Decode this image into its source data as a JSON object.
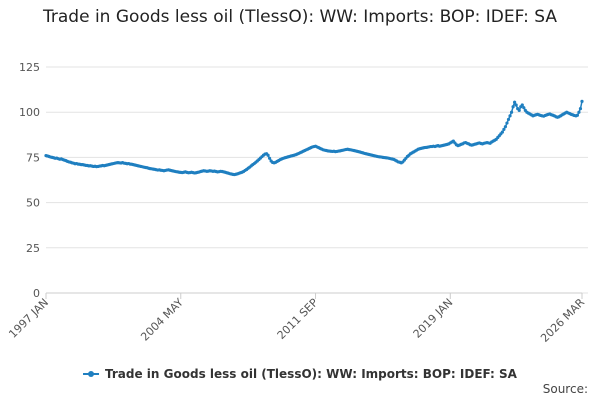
{
  "chart_data": {
    "type": "line",
    "title": "Trade in Goods less oil (TlessO): WW: Imports: BOP: IDEF: SA",
    "source": "Source:",
    "categories": [
      "1997 JAN",
      null,
      null,
      null,
      null,
      null,
      null,
      null,
      null,
      null,
      null,
      null,
      null,
      null,
      null,
      null,
      null,
      null,
      null,
      null,
      null,
      null,
      null,
      null,
      null,
      null,
      null,
      null,
      null,
      null,
      null,
      null,
      null,
      null,
      null,
      null,
      null,
      null,
      null,
      null,
      null,
      null,
      null,
      null,
      null,
      null,
      null,
      null,
      null,
      null,
      null,
      null,
      null,
      null,
      null,
      null,
      null,
      null,
      null,
      null,
      null,
      null,
      null,
      null,
      null,
      null,
      null,
      null,
      null,
      null,
      null,
      null,
      null,
      null,
      null,
      null,
      null,
      null,
      null,
      null,
      null,
      null,
      null,
      null,
      null,
      null,
      null,
      null,
      "2004 MAY",
      null,
      null,
      null,
      null,
      null,
      null,
      null,
      null,
      null,
      null,
      null,
      null,
      null,
      null,
      null,
      null,
      null,
      null,
      null,
      null,
      null,
      null,
      null,
      null,
      null,
      null,
      null,
      null,
      null,
      null,
      null,
      null,
      null,
      null,
      null,
      null,
      null,
      null,
      null,
      null,
      null,
      null,
      null,
      null,
      null,
      null,
      null,
      null,
      null,
      null,
      null,
      null,
      null,
      null,
      null,
      null,
      null,
      null,
      null,
      null,
      null,
      null,
      null,
      null,
      null,
      null,
      null,
      null,
      null,
      null,
      null,
      null,
      null,
      null,
      null,
      null,
      null,
      null,
      null,
      null,
      null,
      null,
      null,
      null,
      null,
      null,
      null,
      "2011 SEP",
      null,
      null,
      null,
      null,
      null,
      null,
      null,
      null,
      null,
      null,
      null,
      null,
      null,
      null,
      null,
      null,
      null,
      null,
      null,
      null,
      null,
      null,
      null,
      null,
      null,
      null,
      null,
      null,
      null,
      null,
      null,
      null,
      null,
      null,
      null,
      null,
      null,
      null,
      null,
      null,
      null,
      null,
      null,
      null,
      null,
      null,
      null,
      null,
      null,
      null,
      null,
      null,
      null,
      null,
      null,
      null,
      null,
      null,
      null,
      null,
      null,
      null,
      null,
      null,
      null,
      null,
      null,
      null,
      null,
      null,
      null,
      null,
      null,
      null,
      null,
      null,
      null,
      null,
      null,
      null,
      null,
      null,
      null,
      null,
      null,
      null,
      null,
      "2019 JAN",
      null,
      null,
      null,
      null,
      null,
      null,
      null,
      null,
      null,
      null,
      null,
      null,
      null,
      null,
      null,
      null,
      null,
      null,
      null,
      null,
      null,
      null,
      null,
      null,
      null,
      null,
      null,
      null,
      null,
      null,
      null,
      null,
      null,
      null,
      null,
      null,
      null,
      null,
      null,
      null,
      null,
      null,
      null,
      null,
      null,
      null,
      null,
      null,
      null,
      null,
      null,
      null,
      null,
      null,
      null,
      null,
      null,
      null,
      null,
      null,
      null,
      null,
      null,
      null,
      null,
      null,
      null,
      null,
      null,
      null,
      null,
      null,
      null,
      null,
      null,
      null,
      null,
      null,
      null,
      null,
      null,
      null,
      null,
      null,
      null,
      "2026 MAR"
    ],
    "series": [
      {
        "name": "Trade in Goods less oil (TlessO): WW: Imports: BOP: IDEF: SA",
        "color": "#1f7fc0",
        "values": [
          76,
          75.8,
          75.5,
          75.2,
          75,
          74.8,
          74.5,
          74.6,
          74.3,
          74,
          74.2,
          73.8,
          73.5,
          73.2,
          72.8,
          72.5,
          72.3,
          72,
          71.8,
          71.5,
          71.6,
          71.3,
          71.2,
          71,
          71,
          70.8,
          70.6,
          70.5,
          70.3,
          70.4,
          70.2,
          70,
          70.1,
          69.9,
          70,
          70.2,
          70.3,
          70.5,
          70.4,
          70.6,
          70.8,
          71,
          71.2,
          71.4,
          71.6,
          71.8,
          72,
          72.1,
          72,
          71.9,
          72.1,
          71.8,
          71.7,
          71.5,
          71.6,
          71.3,
          71.2,
          71,
          70.8,
          70.6,
          70.4,
          70.2,
          70,
          69.8,
          69.6,
          69.4,
          69.3,
          69,
          68.8,
          68.7,
          68.5,
          68.4,
          68.2,
          68,
          68.1,
          67.9,
          67.8,
          67.6,
          67.8,
          68,
          68.1,
          67.9,
          67.7,
          67.5,
          67.3,
          67.1,
          67,
          66.8,
          66.7,
          66.6,
          66.8,
          67,
          66.7,
          66.5,
          66.6,
          66.8,
          66.6,
          66.4,
          66.5,
          66.7,
          66.9,
          67.2,
          67.4,
          67.6,
          67.5,
          67.3,
          67.4,
          67.6,
          67.5,
          67.3,
          67.4,
          67.2,
          67,
          67.1,
          67.3,
          67.2,
          67,
          66.8,
          66.5,
          66.3,
          66,
          65.8,
          65.6,
          65.5,
          65.7,
          65.9,
          66.2,
          66.5,
          66.8,
          67.2,
          67.8,
          68.3,
          69,
          69.6,
          70.3,
          71,
          71.6,
          72.3,
          73,
          73.8,
          74.6,
          75.4,
          76.2,
          76.8,
          77,
          76.2,
          74.5,
          73,
          72.2,
          72,
          72.3,
          72.8,
          73.3,
          73.8,
          74.2,
          74.5,
          74.8,
          75,
          75.3,
          75.5,
          75.8,
          76,
          76.2,
          76.5,
          76.8,
          77.2,
          77.6,
          78,
          78.4,
          78.8,
          79.2,
          79.6,
          80,
          80.4,
          80.8,
          81,
          81.2,
          80.8,
          80.4,
          80,
          79.6,
          79.2,
          79,
          78.8,
          78.6,
          78.5,
          78.4,
          78.3,
          78.4,
          78.2,
          78.3,
          78.5,
          78.6,
          78.8,
          79,
          79.2,
          79.4,
          79.5,
          79.3,
          79.2,
          79,
          78.8,
          78.6,
          78.4,
          78.2,
          78,
          77.7,
          77.5,
          77.2,
          77,
          76.8,
          76.6,
          76.4,
          76.2,
          76,
          75.8,
          75.6,
          75.4,
          75.3,
          75.2,
          75,
          74.9,
          74.8,
          74.7,
          74.5,
          74.3,
          74.1,
          73.9,
          73.5,
          73,
          72.5,
          72.3,
          72,
          72.5,
          73.5,
          74.5,
          75.5,
          76.2,
          77,
          77.5,
          78,
          78.5,
          79,
          79.5,
          79.8,
          80,
          80.2,
          80.4,
          80.5,
          80.6,
          80.8,
          81,
          81,
          81.2,
          81,
          81.3,
          81.5,
          81.2,
          81.4,
          81.6,
          81.8,
          82,
          82.2,
          82.5,
          83,
          83.5,
          84,
          83,
          82,
          81.5,
          81.8,
          82.2,
          82.5,
          83,
          83.2,
          82.8,
          82.5,
          82,
          81.8,
          82,
          82.3,
          82.5,
          82.8,
          83,
          82.7,
          82.5,
          82.8,
          83,
          83.2,
          83,
          82.8,
          83.5,
          84,
          84.5,
          85,
          86,
          87,
          88,
          89,
          90.5,
          92,
          94,
          96,
          98,
          100,
          103,
          105.5,
          104,
          102,
          101,
          103,
          104,
          102.5,
          101,
          100,
          99.5,
          99,
          98.5,
          98,
          98.3,
          98.6,
          98.8,
          98.5,
          98.2,
          98,
          97.8,
          98.2,
          98.5,
          98.8,
          99,
          98.6,
          98.3,
          98,
          97.5,
          97.2,
          97.5,
          98,
          98.5,
          99,
          99.5,
          100,
          99.6,
          99.2,
          98.8,
          98.5,
          98.2,
          98,
          98.3,
          100,
          102,
          106
        ]
      }
    ],
    "ylim": [
      0,
      125
    ],
    "yticks": [
      0,
      25,
      50,
      75,
      100,
      125
    ],
    "grid": true,
    "legend": "bottom"
  }
}
